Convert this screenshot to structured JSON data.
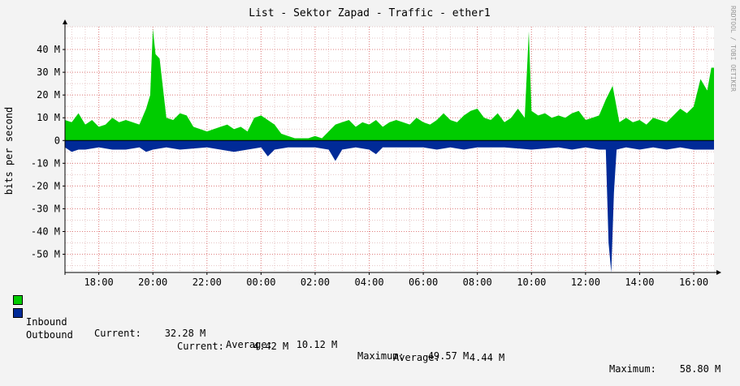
{
  "chart_data": {
    "type": "area",
    "title": "List - Sektor Zapad - Traffic - ether1",
    "ylabel": "bits per second",
    "watermark": "RRDTOOL / TOBI OETIKER",
    "ylim": [
      -58,
      50
    ],
    "yticks": [
      {
        "v": 40,
        "label": "40 M"
      },
      {
        "v": 30,
        "label": "30 M"
      },
      {
        "v": 20,
        "label": "20 M"
      },
      {
        "v": 10,
        "label": "10 M"
      },
      {
        "v": 0,
        "label": "0"
      },
      {
        "v": -10,
        "label": "-10 M"
      },
      {
        "v": -20,
        "label": "-20 M"
      },
      {
        "v": -30,
        "label": "-30 M"
      },
      {
        "v": -40,
        "label": "-40 M"
      },
      {
        "v": -50,
        "label": "-50 M"
      }
    ],
    "xlim": [
      16.75,
      40.75
    ],
    "xticks": [
      {
        "v": 18,
        "label": "18:00"
      },
      {
        "v": 20,
        "label": "20:00"
      },
      {
        "v": 22,
        "label": "22:00"
      },
      {
        "v": 24,
        "label": "00:00"
      },
      {
        "v": 26,
        "label": "02:00"
      },
      {
        "v": 28,
        "label": "04:00"
      },
      {
        "v": 30,
        "label": "06:00"
      },
      {
        "v": 32,
        "label": "08:00"
      },
      {
        "v": 34,
        "label": "10:00"
      },
      {
        "v": 36,
        "label": "12:00"
      },
      {
        "v": 38,
        "label": "14:00"
      },
      {
        "v": 40,
        "label": "16:00"
      }
    ],
    "series": [
      {
        "name": "Inbound",
        "color": "#00cc00",
        "points": [
          [
            16.75,
            9
          ],
          [
            17.0,
            8
          ],
          [
            17.25,
            12
          ],
          [
            17.5,
            7
          ],
          [
            17.75,
            9
          ],
          [
            18.0,
            6
          ],
          [
            18.25,
            7
          ],
          [
            18.5,
            10
          ],
          [
            18.75,
            8
          ],
          [
            19.0,
            9
          ],
          [
            19.25,
            8
          ],
          [
            19.5,
            7
          ],
          [
            19.75,
            14
          ],
          [
            19.9,
            20
          ],
          [
            20.0,
            49
          ],
          [
            20.1,
            38
          ],
          [
            20.25,
            36
          ],
          [
            20.5,
            10
          ],
          [
            20.75,
            9
          ],
          [
            21.0,
            12
          ],
          [
            21.25,
            11
          ],
          [
            21.5,
            6
          ],
          [
            21.75,
            5
          ],
          [
            22.0,
            4
          ],
          [
            22.25,
            5
          ],
          [
            22.5,
            6
          ],
          [
            22.75,
            7
          ],
          [
            23.0,
            5
          ],
          [
            23.25,
            6
          ],
          [
            23.5,
            4
          ],
          [
            23.75,
            10
          ],
          [
            24.0,
            11
          ],
          [
            24.25,
            9
          ],
          [
            24.5,
            7
          ],
          [
            24.75,
            3
          ],
          [
            25.0,
            2
          ],
          [
            25.25,
            1
          ],
          [
            25.5,
            1
          ],
          [
            25.75,
            1
          ],
          [
            26.0,
            2
          ],
          [
            26.25,
            1
          ],
          [
            26.5,
            4
          ],
          [
            26.75,
            7
          ],
          [
            27.0,
            8
          ],
          [
            27.25,
            9
          ],
          [
            27.5,
            6
          ],
          [
            27.75,
            8
          ],
          [
            28.0,
            7
          ],
          [
            28.25,
            9
          ],
          [
            28.5,
            6
          ],
          [
            28.75,
            8
          ],
          [
            29.0,
            9
          ],
          [
            29.25,
            8
          ],
          [
            29.5,
            7
          ],
          [
            29.75,
            10
          ],
          [
            30.0,
            8
          ],
          [
            30.25,
            7
          ],
          [
            30.5,
            9
          ],
          [
            30.75,
            12
          ],
          [
            31.0,
            9
          ],
          [
            31.25,
            8
          ],
          [
            31.5,
            11
          ],
          [
            31.75,
            13
          ],
          [
            32.0,
            14
          ],
          [
            32.25,
            10
          ],
          [
            32.5,
            9
          ],
          [
            32.75,
            12
          ],
          [
            33.0,
            8
          ],
          [
            33.25,
            10
          ],
          [
            33.5,
            14
          ],
          [
            33.75,
            10
          ],
          [
            33.9,
            48
          ],
          [
            34.0,
            13
          ],
          [
            34.25,
            11
          ],
          [
            34.5,
            12
          ],
          [
            34.75,
            10
          ],
          [
            35.0,
            11
          ],
          [
            35.25,
            10
          ],
          [
            35.5,
            12
          ],
          [
            35.75,
            13
          ],
          [
            36.0,
            9
          ],
          [
            36.25,
            10
          ],
          [
            36.5,
            11
          ],
          [
            36.75,
            18
          ],
          [
            37.0,
            24
          ],
          [
            37.25,
            8
          ],
          [
            37.5,
            10
          ],
          [
            37.75,
            8
          ],
          [
            38.0,
            9
          ],
          [
            38.25,
            7
          ],
          [
            38.5,
            10
          ],
          [
            38.75,
            9
          ],
          [
            39.0,
            8
          ],
          [
            39.25,
            11
          ],
          [
            39.5,
            14
          ],
          [
            39.75,
            12
          ],
          [
            40.0,
            15
          ],
          [
            40.25,
            27
          ],
          [
            40.5,
            22
          ],
          [
            40.65,
            32
          ],
          [
            40.75,
            32
          ]
        ]
      },
      {
        "name": "Outbound",
        "color": "#002a97",
        "points": [
          [
            16.75,
            -3
          ],
          [
            17.0,
            -5
          ],
          [
            17.25,
            -4
          ],
          [
            17.5,
            -4
          ],
          [
            18.0,
            -3
          ],
          [
            18.5,
            -4
          ],
          [
            19.0,
            -4
          ],
          [
            19.5,
            -3
          ],
          [
            19.75,
            -5
          ],
          [
            20.0,
            -4
          ],
          [
            20.5,
            -3
          ],
          [
            21.0,
            -4
          ],
          [
            22.0,
            -3
          ],
          [
            22.5,
            -4
          ],
          [
            23.0,
            -5
          ],
          [
            23.5,
            -4
          ],
          [
            24.0,
            -3
          ],
          [
            24.25,
            -7
          ],
          [
            24.5,
            -4
          ],
          [
            25.0,
            -3
          ],
          [
            26.0,
            -3
          ],
          [
            26.5,
            -4
          ],
          [
            26.75,
            -9
          ],
          [
            27.0,
            -4
          ],
          [
            27.5,
            -3
          ],
          [
            28.0,
            -4
          ],
          [
            28.25,
            -6
          ],
          [
            28.5,
            -3
          ],
          [
            29.0,
            -3
          ],
          [
            30.0,
            -3
          ],
          [
            30.5,
            -4
          ],
          [
            31.0,
            -3
          ],
          [
            31.5,
            -4
          ],
          [
            32.0,
            -3
          ],
          [
            33.0,
            -3
          ],
          [
            34.0,
            -4
          ],
          [
            35.0,
            -3
          ],
          [
            35.5,
            -4
          ],
          [
            36.0,
            -3
          ],
          [
            36.5,
            -4
          ],
          [
            36.75,
            -4
          ],
          [
            36.85,
            -45
          ],
          [
            36.95,
            -58
          ],
          [
            37.05,
            -23
          ],
          [
            37.15,
            -4
          ],
          [
            37.5,
            -3
          ],
          [
            38.0,
            -4
          ],
          [
            38.5,
            -3
          ],
          [
            39.0,
            -4
          ],
          [
            39.5,
            -3
          ],
          [
            40.0,
            -4
          ],
          [
            40.5,
            -4
          ],
          [
            40.75,
            -4
          ]
        ]
      }
    ]
  },
  "legend": {
    "inbound": {
      "name": "Inbound",
      "current": "Current:    32.28 M",
      "average": "Average:    10.12 M",
      "maximum": "Maximum:    49.57 M"
    },
    "outbound": {
      "name": "Outbound",
      "current": "Current:     4.42 M",
      "average": "Average:     4.44 M",
      "maximum": "Maximum:    58.80 M"
    }
  }
}
